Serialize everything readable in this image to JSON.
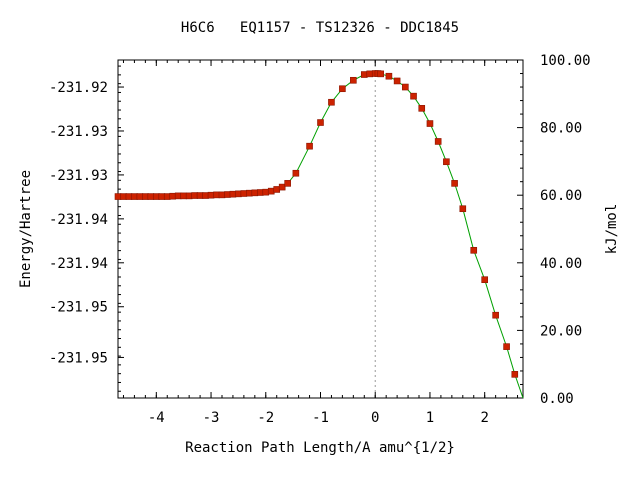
{
  "chart_data": {
    "type": "line",
    "title": "H6C6   EQ1157 - TS12326 - DDC1845",
    "xlabel": "Reaction Path Length/A amu^{1/2}",
    "ylabel_left": "Energy/Hartree",
    "ylabel_right": "kJ/mol",
    "xlim": [
      -4.7,
      2.7
    ],
    "y_right_lim": [
      0,
      100
    ],
    "x_ticks": [
      -4,
      -3,
      -2,
      -1,
      0,
      1,
      2
    ],
    "x_tick_labels": [
      "-4",
      "-3",
      "-2",
      "-1",
      "0",
      "1",
      "2"
    ],
    "left_ticks_kj": [
      92,
      79,
      66,
      53,
      40,
      27,
      12
    ],
    "left_tick_labels": [
      "-231.92",
      "-231.93",
      "-231.93",
      "-231.94",
      "-231.94",
      "-231.95",
      "-231.95"
    ],
    "right_ticks": [
      0,
      20,
      40,
      60,
      80,
      100
    ],
    "right_tick_labels": [
      "0.00",
      "20.00",
      "40.00",
      "60.00",
      "80.00",
      "100.00"
    ],
    "ts_x": 0,
    "line_color": "#00a000",
    "marker_color": "#cc2200",
    "series": [
      {
        "x": [
          -4.7,
          -4.6,
          -4.5,
          -4.4,
          -4.3,
          -4.2,
          -4.1,
          -4.0,
          -3.9,
          -3.8,
          -3.7,
          -3.6,
          -3.5,
          -3.4,
          -3.3,
          -3.2,
          -3.1,
          -3.0,
          -2.9,
          -2.8,
          -2.7,
          -2.6,
          -2.5,
          -2.4,
          -2.3,
          -2.2,
          -2.1,
          -2.0,
          -1.9,
          -1.8,
          -1.7,
          -1.6,
          -1.45,
          -1.2,
          -1.0,
          -0.8,
          -0.6,
          -0.4,
          -0.2,
          -0.1,
          0.0,
          0.05,
          0.1,
          0.25,
          0.4,
          0.55,
          0.7,
          0.85,
          1.0,
          1.15,
          1.3,
          1.45,
          1.6,
          1.8,
          2.0,
          2.2,
          2.4,
          2.55
        ],
        "y": [
          59.6,
          59.6,
          59.6,
          59.6,
          59.6,
          59.6,
          59.6,
          59.6,
          59.6,
          59.6,
          59.7,
          59.8,
          59.8,
          59.8,
          59.9,
          59.9,
          59.9,
          60.0,
          60.1,
          60.1,
          60.2,
          60.3,
          60.4,
          60.5,
          60.6,
          60.7,
          60.8,
          60.9,
          61.2,
          61.7,
          62.4,
          63.5,
          66.5,
          74.5,
          81.5,
          87.5,
          91.5,
          94.0,
          95.7,
          95.9,
          96.0,
          96.0,
          95.9,
          95.2,
          93.8,
          92.0,
          89.3,
          85.7,
          81.2,
          75.9,
          69.9,
          63.5,
          56.0,
          43.7,
          35.0,
          24.5,
          15.2,
          7.0
        ]
      }
    ]
  }
}
